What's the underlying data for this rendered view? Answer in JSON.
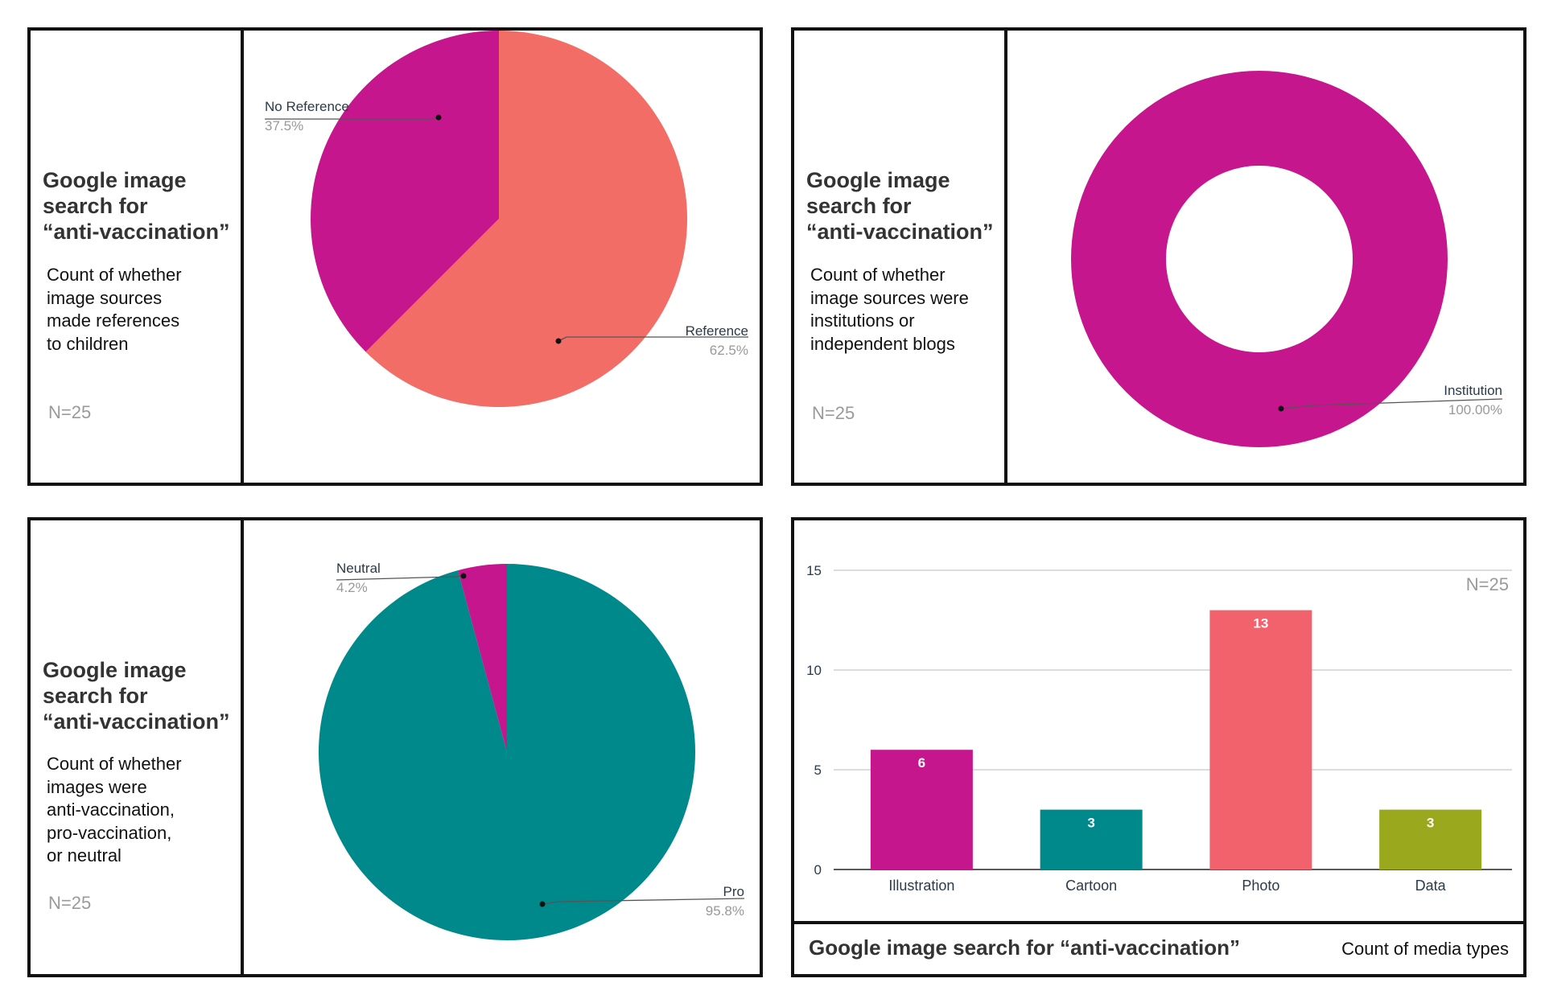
{
  "chart_data": [
    {
      "type": "pie",
      "title": "Google image\nsearch for\n“anti-vaccination”",
      "subtitle": "Count of whether\nimage sources\nmade references\nto children",
      "note": "N=25",
      "slices": [
        {
          "label": "Reference",
          "value": 62.5,
          "percent_label": "62.5%",
          "color": "#F26D66"
        },
        {
          "label": "No Reference",
          "value": 37.5,
          "percent_label": "37.5%",
          "color": "#C6168D"
        }
      ]
    },
    {
      "type": "pie",
      "title": "Google image\n search for\n“anti-vaccination”",
      "subtitle": "Count of whether\nimage sources were\ninstitutions or\nindependent blogs",
      "note": "N=25",
      "donut": true,
      "slices": [
        {
          "label": "Institution",
          "value": 100,
          "percent_label": "100.00%",
          "color": "#C6168D"
        }
      ]
    },
    {
      "type": "pie",
      "title": "Google image\n search for\n“anti-vaccination”",
      "subtitle": "Count of whether\nimages were\nanti-vaccination,\npro-vaccination,\nor neutral",
      "note": "N=25",
      "slices": [
        {
          "label": "Pro",
          "value": 95.8,
          "percent_label": "95.8%",
          "color": "#00898A"
        },
        {
          "label": "Neutral",
          "value": 4.2,
          "percent_label": "4.2%",
          "color": "#C6168D"
        }
      ]
    },
    {
      "type": "bar",
      "title": "Google image search for “anti-vaccination”",
      "subtitle": "Count of media types",
      "note": "N=25",
      "categories": [
        "Illustration",
        "Cartoon",
        "Photo",
        "Data"
      ],
      "values": [
        6,
        3,
        13,
        3
      ],
      "colors": [
        "#C6168D",
        "#00898A",
        "#F2626C",
        "#9AA81E"
      ],
      "ylim": [
        0,
        15
      ],
      "yticks": [
        0,
        5,
        10,
        15
      ],
      "grid": true
    }
  ]
}
